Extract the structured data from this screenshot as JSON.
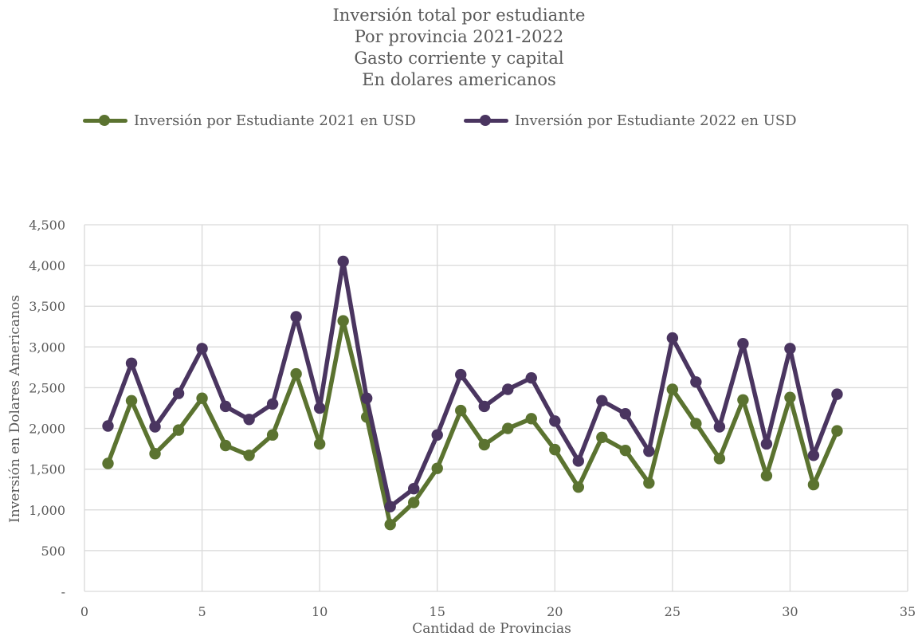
{
  "colors": {
    "series_2021": "#5B7330",
    "series_2022": "#4A3560",
    "grid": "#D9D9D9",
    "text": "#595959"
  },
  "chart_data": {
    "type": "line",
    "title_lines": [
      "Inversión total por estudiante",
      "Por provincia 2021-2022",
      "Gasto corriente y capital",
      "En dolares americanos"
    ],
    "xlabel": "Cantidad de Provincias",
    "ylabel": "Inversión en Dolares Americanos",
    "xlim": [
      0,
      35
    ],
    "ylim": [
      0,
      4500
    ],
    "x_ticks": [
      0,
      5,
      10,
      15,
      20,
      25,
      30,
      35
    ],
    "x_tick_labels": [
      "0",
      "5",
      "10",
      "15",
      "20",
      "25",
      "30",
      "35"
    ],
    "y_ticks": [
      0,
      500,
      1000,
      1500,
      2000,
      2500,
      3000,
      3500,
      4000,
      4500
    ],
    "y_tick_labels": [
      "-",
      "500",
      "1,000",
      "1,500",
      "2,000",
      "2,500",
      "3,000",
      "3,500",
      "4,000",
      "4,500"
    ],
    "grid": true,
    "legend_position": "top-left",
    "x": [
      1,
      2,
      3,
      4,
      5,
      6,
      7,
      8,
      9,
      10,
      11,
      12,
      13,
      14,
      15,
      16,
      17,
      18,
      19,
      20,
      21,
      22,
      23,
      24,
      25,
      26,
      27,
      28,
      29,
      30,
      31,
      32
    ],
    "series": [
      {
        "name": "Inversión por Estudiante 2021 en USD",
        "color": "#5B7330",
        "values": [
          1570,
          2340,
          1690,
          1980,
          2370,
          1790,
          1670,
          1920,
          2670,
          1810,
          3320,
          2140,
          820,
          1090,
          1510,
          2220,
          1800,
          2000,
          2120,
          1740,
          1280,
          1890,
          1730,
          1330,
          2480,
          2060,
          1630,
          2350,
          1420,
          2380,
          1310,
          1970
        ]
      },
      {
        "name": "Inversión por Estudiante 2022 en USD",
        "color": "#4A3560",
        "values": [
          2030,
          2800,
          2020,
          2430,
          2980,
          2270,
          2110,
          2300,
          3370,
          2250,
          4050,
          2370,
          1040,
          1260,
          1920,
          2660,
          2270,
          2480,
          2620,
          2090,
          1600,
          2340,
          2180,
          1720,
          3110,
          2570,
          2020,
          3040,
          1810,
          2980,
          1670,
          2420
        ]
      }
    ]
  }
}
